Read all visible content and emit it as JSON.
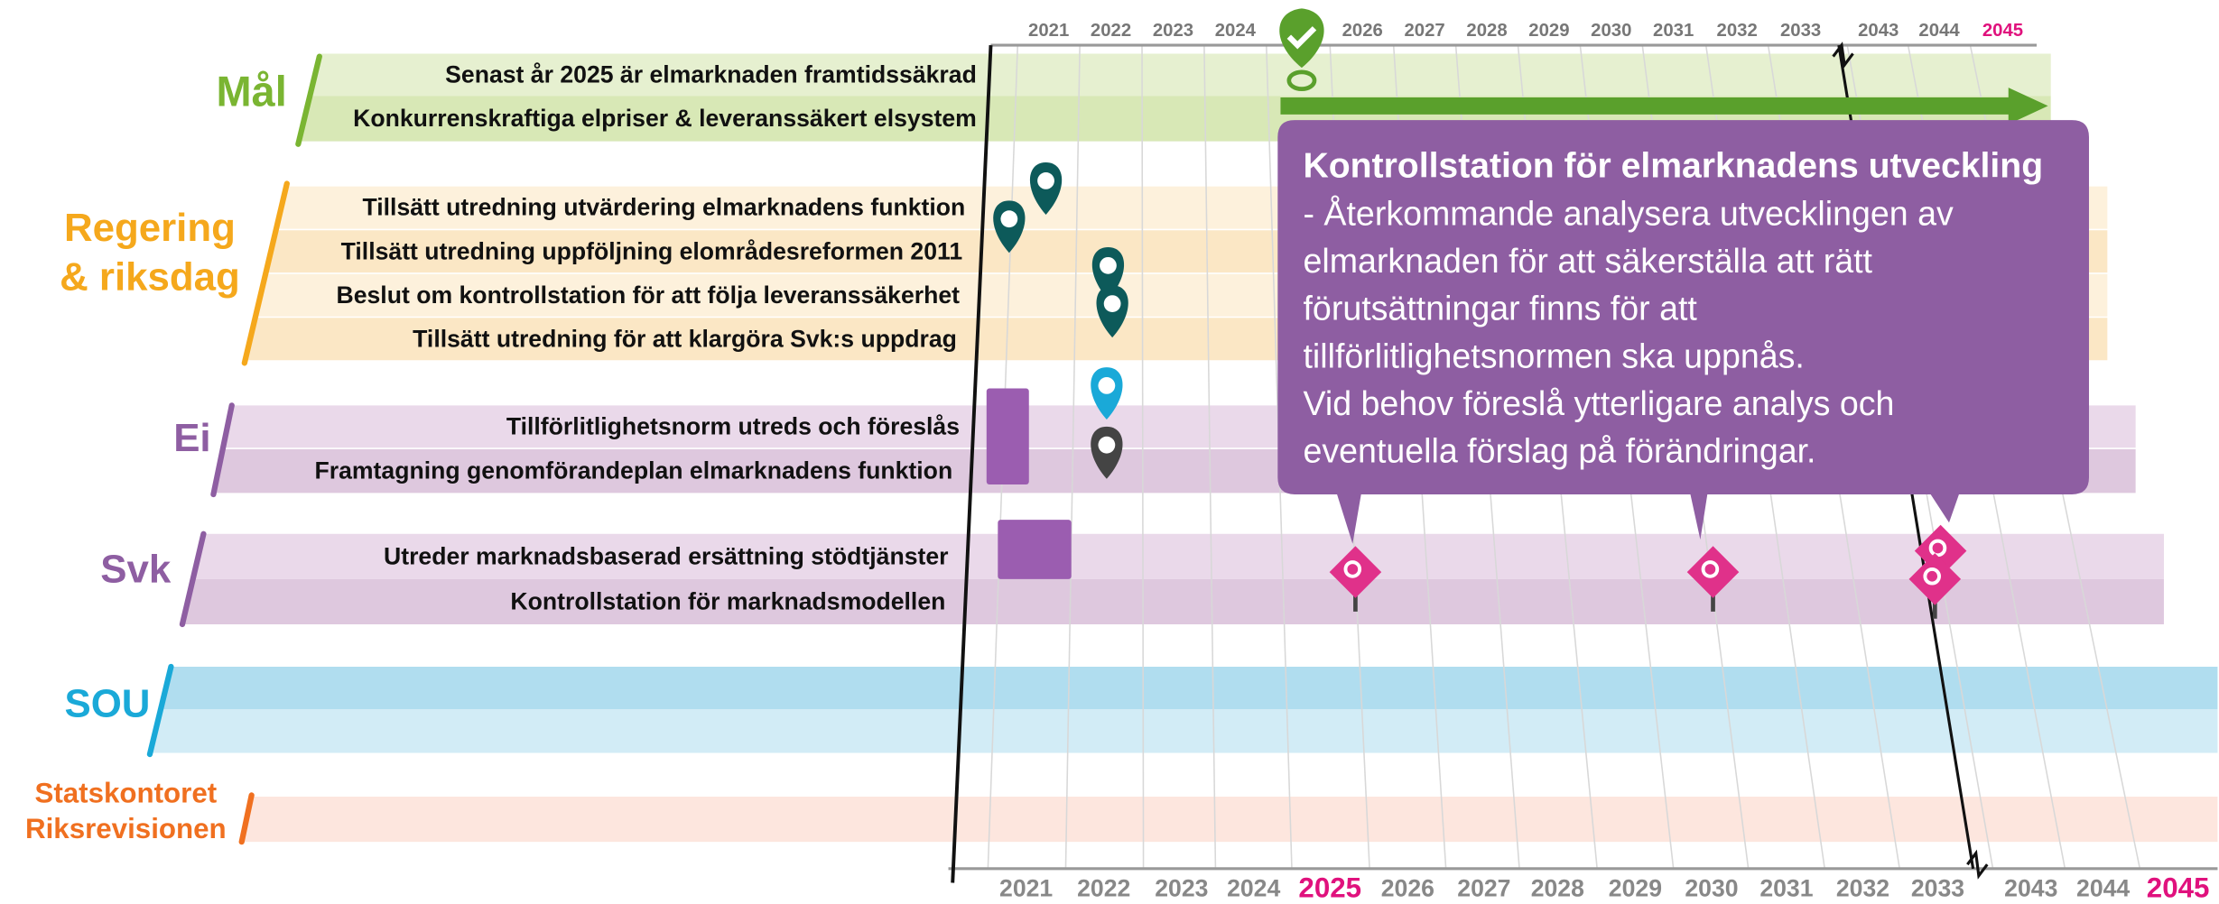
{
  "years_top": [
    "2021",
    "2022",
    "2023",
    "2024",
    "2026",
    "2027",
    "2028",
    "2029",
    "2030",
    "2031",
    "2032",
    "2033",
    "2043",
    "2044",
    "2045"
  ],
  "years_bottom": [
    "2021",
    "2022",
    "2023",
    "2024",
    "2025",
    "2026",
    "2027",
    "2028",
    "2029",
    "2030",
    "2031",
    "2032",
    "2033",
    "2043",
    "2044",
    "2045"
  ],
  "groups": [
    {
      "label": [
        "Mål"
      ],
      "rows": [
        "Senast år 2025 är elmarknaden framtidssäkrad",
        "Konkurrenskraftiga elpriser & leveranssäkert elsystem"
      ]
    },
    {
      "label": [
        "Regering",
        "& riksdag"
      ],
      "rows": [
        "Tillsätt utredning utvärdering elmarknadens funktion",
        "Tillsätt utredning uppföljning elområdesreformen 2011",
        "Beslut om kontrollstation för att följa leveranssäkerhet",
        "Tillsätt utredning för att klargöra Svk:s uppdrag"
      ]
    },
    {
      "label": [
        "Ei"
      ],
      "rows": [
        "Tillförlitlighetsnorm utreds och föreslås",
        "Framtagning genomförandeplan elmarknadens funktion"
      ]
    },
    {
      "label": [
        "Svk"
      ],
      "rows": [
        "Utreder marknadsbaserad ersättning stödtjänster",
        "Kontrollstation för marknadsmodellen"
      ]
    },
    {
      "label": [
        "SOU"
      ],
      "rows": []
    },
    {
      "label": [
        "Statskontoret",
        "Riksrevisionen"
      ],
      "rows": []
    }
  ],
  "callout": {
    "title": "Kontrollstation för elmarknadens utveckling",
    "lines": [
      "- Återkommande analysera utvecklingen av",
      "elmarknaden för att säkerställa att rätt",
      "förutsättningar finns för att",
      "tillförlitlighetsnormen ska uppnås.",
      "Vid behov föreslå ytterligare analys och",
      "eventuella förslag på förändringar."
    ]
  }
}
